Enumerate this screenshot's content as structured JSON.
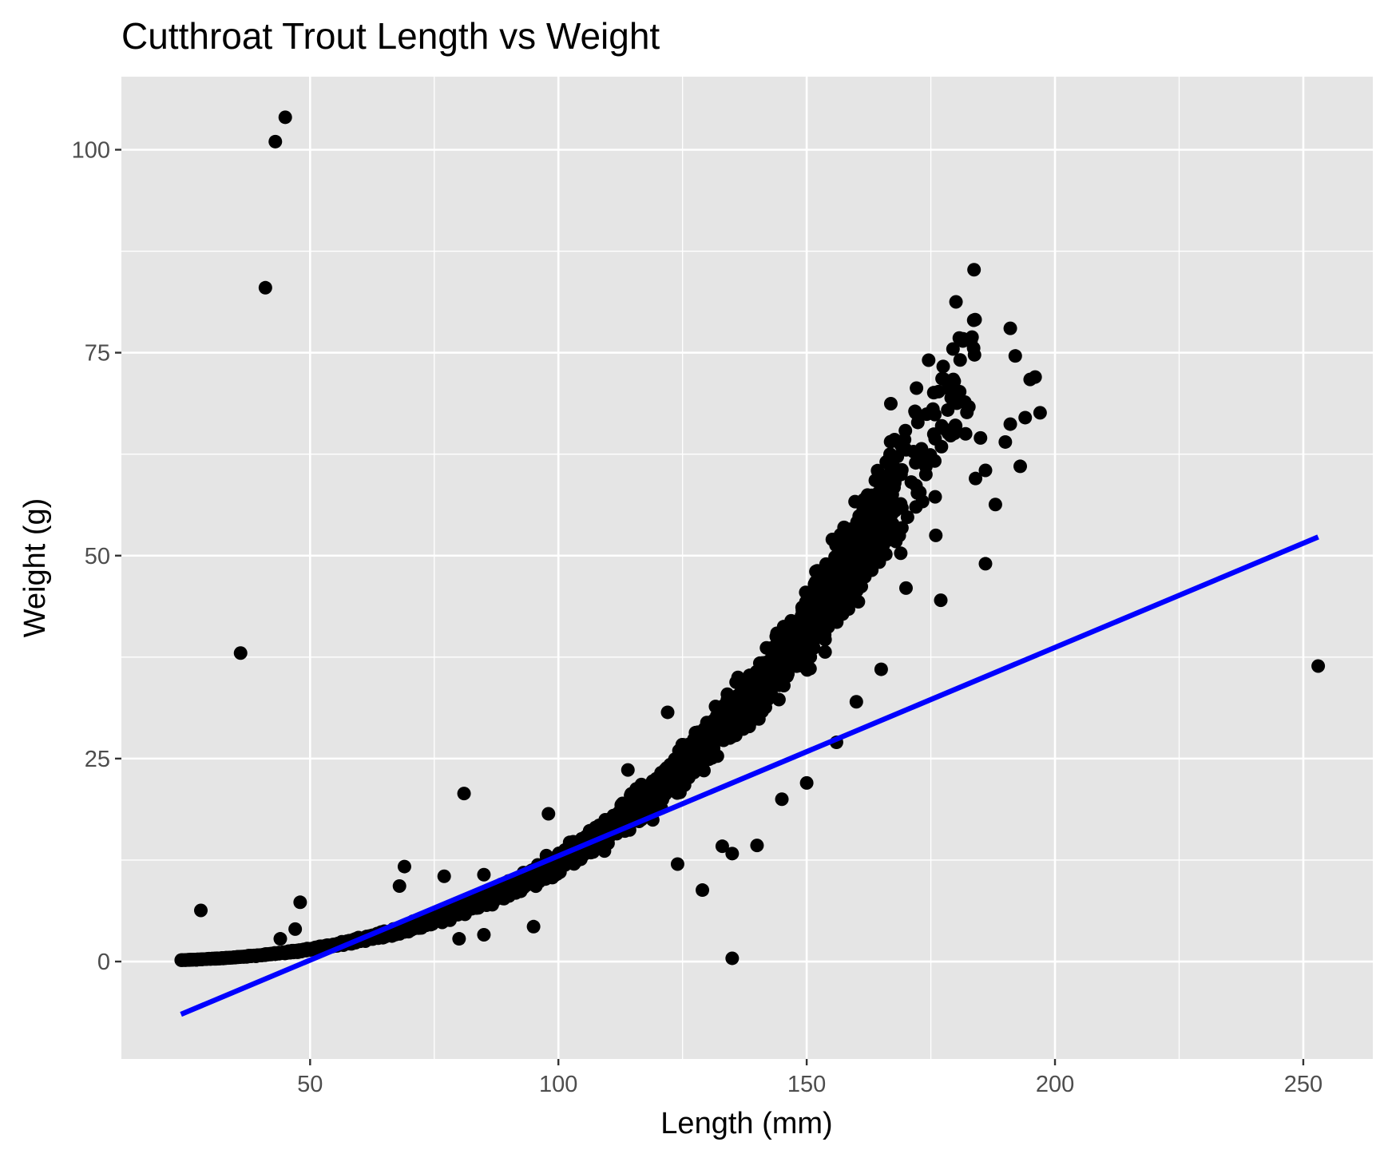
{
  "chart_data": {
    "type": "scatter",
    "title": "Cutthroat Trout Length vs Weight",
    "xlabel": "Length (mm)",
    "ylabel": "Weight (g)",
    "xlim": [
      12,
      264
    ],
    "ylim": [
      -12,
      109
    ],
    "x_ticks": [
      50,
      100,
      150,
      200,
      250
    ],
    "x_minor_ticks": [
      75,
      125,
      175,
      225
    ],
    "y_ticks": [
      0,
      25,
      50,
      75,
      100
    ],
    "y_minor_ticks": [
      12.5,
      37.5,
      62.5,
      87.5
    ],
    "x_tick_labels": [
      "50",
      "100",
      "150",
      "200",
      "250"
    ],
    "y_tick_labels": [
      "0",
      "25",
      "50",
      "75",
      "100"
    ],
    "grid": true,
    "legend": "none",
    "colors": {
      "panel": "#e5e5e5",
      "grid": "#ffffff",
      "points": "#000000",
      "fit_line": "#0000ff"
    },
    "series": [
      {
        "type": "scatter",
        "model": "weight ≈ 0.0000123 × length^3 (dense cloud of observations)",
        "points": [
          [
            36,
            38
          ],
          [
            41,
            83
          ],
          [
            43,
            101
          ],
          [
            45,
            104
          ],
          [
            28,
            6.3
          ],
          [
            48,
            7.3
          ],
          [
            47,
            4
          ],
          [
            44,
            2.8
          ],
          [
            68,
            9.3
          ],
          [
            69,
            11.7
          ],
          [
            77,
            10.5
          ],
          [
            80,
            2.8
          ],
          [
            81,
            20.7
          ],
          [
            85,
            10.7
          ],
          [
            85,
            3.3
          ],
          [
            95,
            4.3
          ],
          [
            98,
            18.2
          ],
          [
            114,
            23.6
          ],
          [
            122,
            30.7
          ],
          [
            124,
            12
          ],
          [
            129,
            8.8
          ],
          [
            133,
            14.2
          ],
          [
            135,
            0.4
          ],
          [
            135,
            13.3
          ],
          [
            140,
            14.3
          ],
          [
            153,
            45
          ],
          [
            158,
            50.5
          ],
          [
            172,
            56
          ],
          [
            173,
            62
          ],
          [
            174,
            60
          ],
          [
            178,
            65.5
          ],
          [
            180,
            66
          ],
          [
            182,
            65
          ],
          [
            185,
            64.5
          ],
          [
            186,
            60.5
          ],
          [
            186,
            49
          ],
          [
            188,
            56.3
          ],
          [
            191,
            66.2
          ],
          [
            191,
            78
          ],
          [
            192,
            74.6
          ],
          [
            193,
            61
          ],
          [
            195,
            71.7
          ],
          [
            196,
            72
          ],
          [
            197,
            67.6
          ],
          [
            194,
            67
          ],
          [
            190,
            64
          ],
          [
            184,
            59.5
          ],
          [
            176,
            52.5
          ],
          [
            170,
            46
          ],
          [
            177,
            44.5
          ],
          [
            165,
            36
          ],
          [
            160,
            32
          ],
          [
            156,
            27
          ],
          [
            150,
            22
          ],
          [
            145,
            20
          ],
          [
            253,
            36.4
          ]
        ]
      },
      {
        "type": "line",
        "name": "",
        "x": [
          24,
          253
        ],
        "y": [
          -6.5,
          52.3
        ]
      }
    ]
  }
}
